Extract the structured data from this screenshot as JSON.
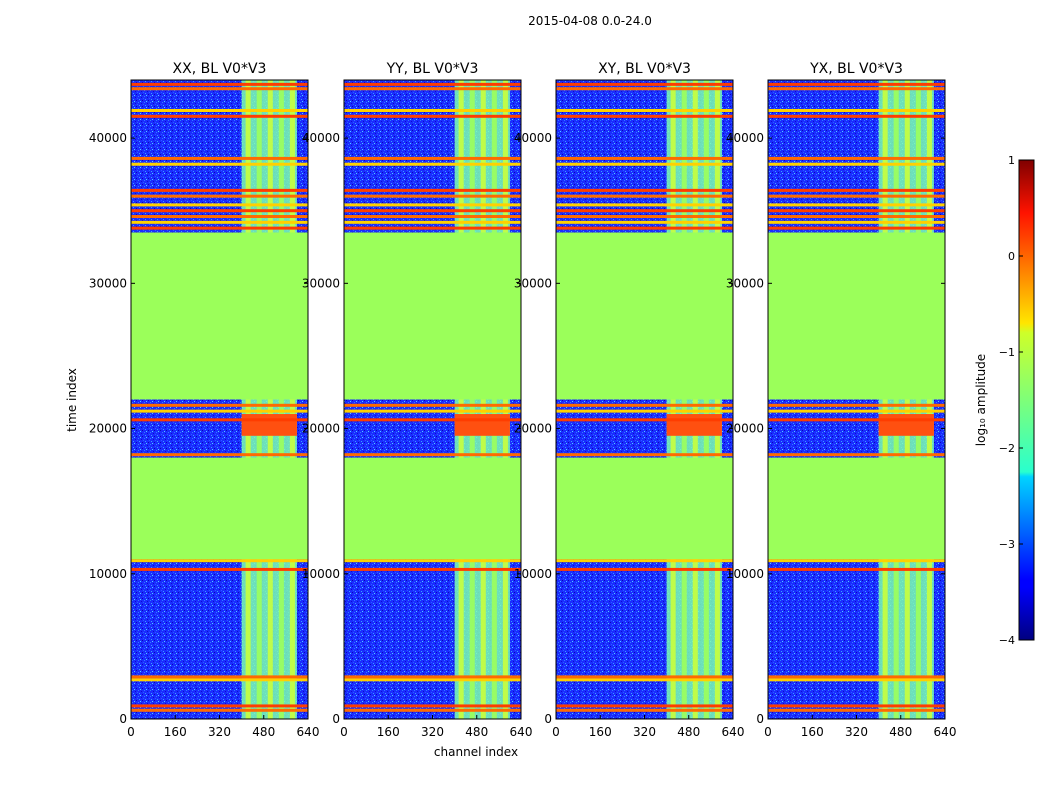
{
  "chart_data": {
    "type": "heatmap",
    "suptitle": "2015-04-08 0.0-24.0",
    "xlabel": "channel index",
    "ylabel": "time index",
    "xlim": [
      0,
      640
    ],
    "ylim": [
      0,
      44000
    ],
    "xticks": [
      0,
      160,
      320,
      480,
      640
    ],
    "yticks": [
      0,
      10000,
      20000,
      30000,
      40000
    ],
    "panels": [
      {
        "title": "XX, BL V0*V3"
      },
      {
        "title": "YY, BL V0*V3"
      },
      {
        "title": "XY, BL V0*V3"
      },
      {
        "title": "YX, BL V0*V3"
      }
    ],
    "colorbar": {
      "label": "log₁₀ amplitude",
      "colormap": "jet",
      "range": [
        -4,
        1
      ],
      "ticks": [
        "−4",
        "−3",
        "−2",
        "−1",
        "0",
        "1"
      ],
      "tick_values": [
        -4,
        -3,
        -2,
        -1,
        0,
        1
      ]
    },
    "regions": {
      "flat_blocks": [
        [
          11000,
          18000
        ],
        [
          22000,
          33500
        ]
      ],
      "active_channels": [
        [
          400,
          600
        ]
      ],
      "flagged_rows": [
        600,
        900,
        2700,
        2900,
        10300,
        10900,
        18200,
        20600,
        21200,
        21600,
        33800,
        34200,
        34600,
        35000,
        35400,
        36000,
        36400,
        38200,
        38600,
        41500,
        41900,
        43400,
        43700
      ]
    }
  }
}
